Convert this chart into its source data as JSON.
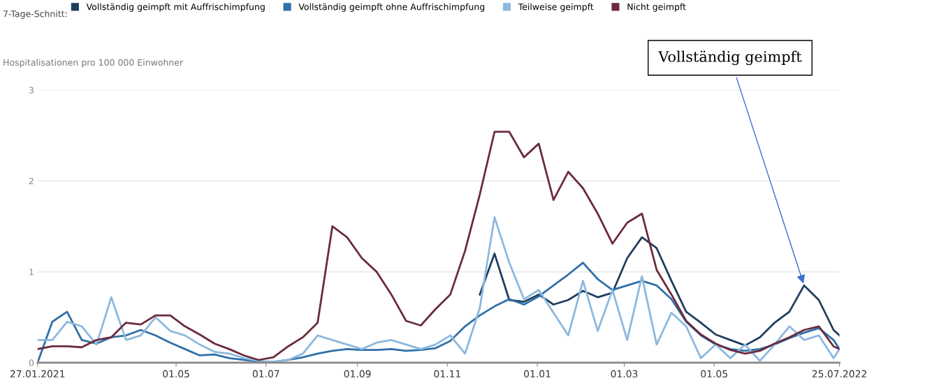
{
  "chart_data": {
    "type": "line",
    "ylabel": "Hospitalisationen pro 100 000 Einwohner",
    "legend_title": "7-Tage-Schnitt:",
    "legend": "top",
    "grid": "y",
    "line_style": "solid",
    "ylim": [
      0,
      3
    ],
    "yticks": [
      0,
      1,
      2,
      3
    ],
    "xlim": [
      "2021-01-27",
      "2022-07-25"
    ],
    "xticks": [
      {
        "value": "2021-01-27",
        "label": "27.01.2021"
      },
      {
        "value": "2021-05-01",
        "label": "01.05"
      },
      {
        "value": "2021-07-01",
        "label": "01.07"
      },
      {
        "value": "2021-09-01",
        "label": "01.09"
      },
      {
        "value": "2021-11-01",
        "label": "01.11"
      },
      {
        "value": "2022-01-01",
        "label": "01.01"
      },
      {
        "value": "2022-03-01",
        "label": "01.03"
      },
      {
        "value": "2022-05-01",
        "label": "01.05"
      },
      {
        "value": "2022-07-25",
        "label": "25.07.2022"
      }
    ],
    "x": [
      "2021-01-27",
      "2021-02-06",
      "2021-02-16",
      "2021-02-26",
      "2021-03-08",
      "2021-03-18",
      "2021-03-28",
      "2021-04-07",
      "2021-04-17",
      "2021-04-27",
      "2021-05-07",
      "2021-05-17",
      "2021-05-27",
      "2021-06-06",
      "2021-06-16",
      "2021-06-26",
      "2021-07-06",
      "2021-07-16",
      "2021-07-26",
      "2021-08-05",
      "2021-08-15",
      "2021-08-25",
      "2021-09-04",
      "2021-09-14",
      "2021-09-24",
      "2021-10-04",
      "2021-10-14",
      "2021-10-24",
      "2021-11-03",
      "2021-11-13",
      "2021-11-23",
      "2021-12-03",
      "2021-12-13",
      "2021-12-23",
      "2022-01-02",
      "2022-01-12",
      "2022-01-22",
      "2022-02-01",
      "2022-02-11",
      "2022-02-21",
      "2022-03-03",
      "2022-03-13",
      "2022-03-23",
      "2022-04-02",
      "2022-04-12",
      "2022-04-22",
      "2022-05-02",
      "2022-05-12",
      "2022-05-22",
      "2022-06-01",
      "2022-06-11",
      "2022-06-21",
      "2022-07-01",
      "2022-07-11",
      "2022-07-21",
      "2022-07-25"
    ],
    "series": [
      {
        "name": "Vollständig geimpft mit Auffrischimpfung",
        "color": "#1f3e5e",
        "values": [
          null,
          null,
          null,
          null,
          null,
          null,
          null,
          null,
          null,
          null,
          null,
          null,
          null,
          null,
          null,
          null,
          null,
          null,
          null,
          null,
          null,
          null,
          null,
          null,
          null,
          null,
          null,
          null,
          null,
          null,
          0.75,
          1.2,
          0.69,
          0.67,
          0.75,
          0.64,
          0.69,
          0.79,
          0.72,
          0.77,
          1.15,
          1.38,
          1.26,
          0.9,
          0.56,
          0.44,
          0.31,
          0.25,
          0.19,
          0.28,
          0.44,
          0.56,
          0.85,
          0.69,
          0.36,
          0.3
        ]
      },
      {
        "name": "Vollständig geimpft ohne Auffrischimpfung",
        "color": "#2f6fa8",
        "values": [
          0.0,
          0.45,
          0.56,
          0.25,
          0.21,
          0.28,
          0.3,
          0.36,
          0.3,
          0.22,
          0.15,
          0.08,
          0.09,
          0.05,
          0.03,
          0.01,
          0.01,
          0.03,
          0.06,
          0.1,
          0.13,
          0.15,
          0.14,
          0.14,
          0.15,
          0.13,
          0.14,
          0.16,
          0.24,
          0.4,
          0.52,
          0.62,
          0.7,
          0.64,
          0.73,
          0.85,
          0.97,
          1.1,
          0.92,
          0.8,
          0.85,
          0.9,
          0.85,
          0.7,
          0.45,
          0.3,
          0.2,
          0.15,
          0.13,
          0.15,
          0.2,
          0.27,
          0.33,
          0.38,
          0.25,
          0.15
        ]
      },
      {
        "name": "Teilweise geimpft",
        "color": "#8cb8e0",
        "values": [
          0.25,
          0.25,
          0.45,
          0.4,
          0.2,
          0.72,
          0.25,
          0.3,
          0.5,
          0.35,
          0.3,
          0.2,
          0.12,
          0.1,
          0.05,
          0.02,
          0.01,
          0.03,
          0.1,
          0.3,
          0.25,
          0.2,
          0.15,
          0.22,
          0.25,
          0.2,
          0.15,
          0.2,
          0.3,
          0.1,
          0.6,
          1.6,
          1.1,
          0.7,
          0.8,
          0.55,
          0.3,
          0.9,
          0.35,
          0.8,
          0.25,
          0.95,
          0.2,
          0.55,
          0.4,
          0.05,
          0.2,
          0.05,
          0.2,
          0.02,
          0.2,
          0.4,
          0.25,
          0.3,
          0.05,
          0.15
        ]
      },
      {
        "name": "Nicht geimpft",
        "color": "#6b2a3e",
        "values": [
          0.15,
          0.18,
          0.18,
          0.17,
          0.25,
          0.28,
          0.44,
          0.42,
          0.52,
          0.52,
          0.4,
          0.31,
          0.21,
          0.15,
          0.08,
          0.03,
          0.06,
          0.18,
          0.28,
          0.44,
          1.5,
          1.38,
          1.15,
          1.0,
          0.75,
          0.46,
          0.41,
          0.59,
          0.75,
          1.23,
          1.85,
          2.54,
          2.54,
          2.26,
          2.41,
          1.79,
          2.1,
          1.92,
          1.64,
          1.31,
          1.54,
          1.64,
          1.02,
          0.75,
          0.46,
          0.31,
          0.21,
          0.14,
          0.1,
          0.13,
          0.21,
          0.28,
          0.36,
          0.4,
          0.18,
          0.15
        ]
      }
    ],
    "annotations": [
      {
        "text": "Vollständig geimpft",
        "x": "2022-07-01",
        "y": 0.85
      }
    ]
  }
}
